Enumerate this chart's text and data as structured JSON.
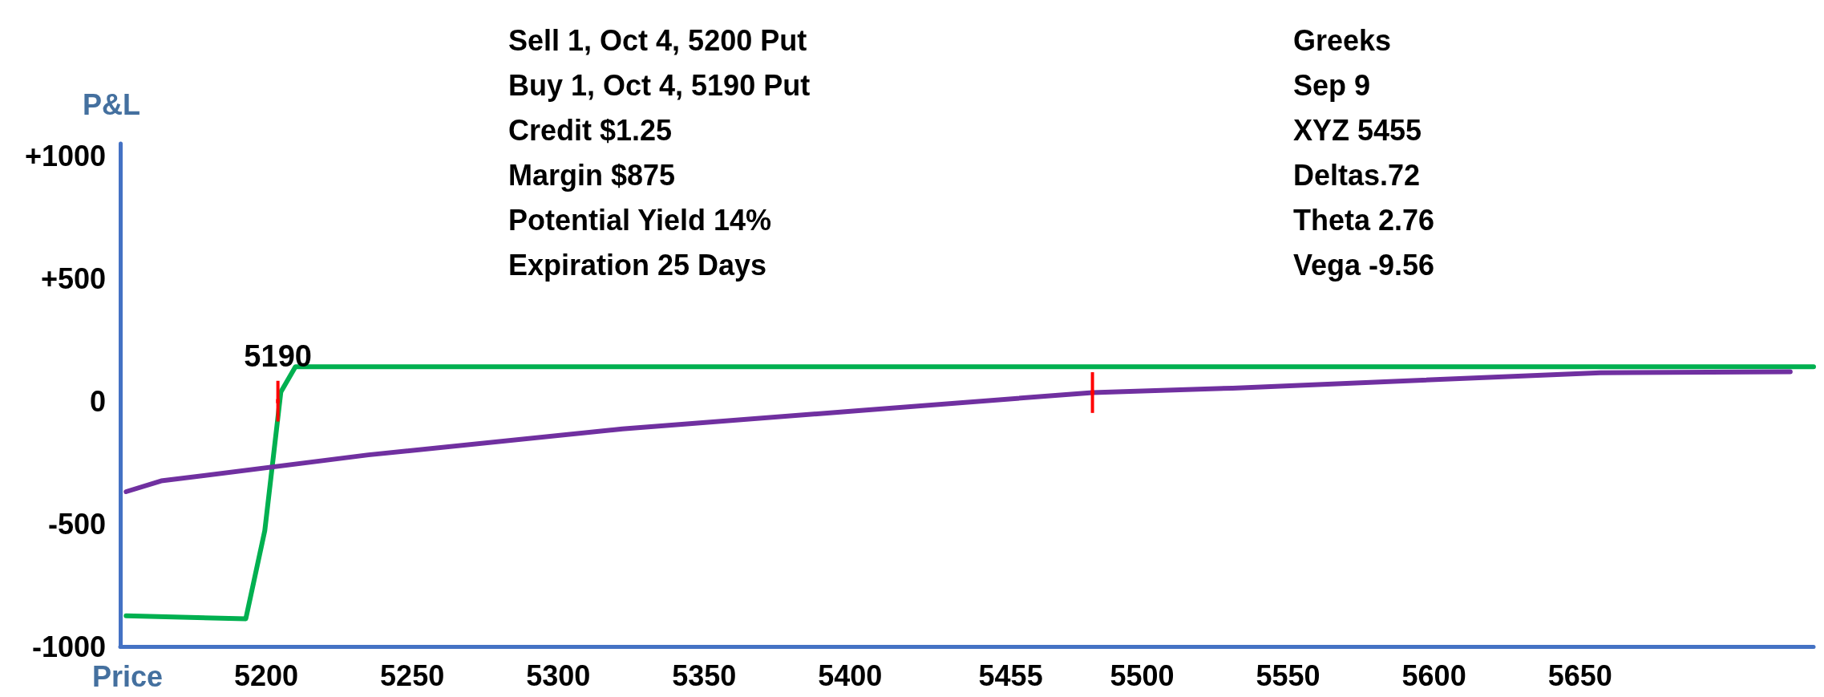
{
  "chart_data": {
    "type": "line",
    "xlabel": "Price",
    "ylabel": "P&L",
    "xlim": [
      5150,
      5730
    ],
    "xticks": [
      5200,
      5250,
      5300,
      5350,
      5400,
      5455,
      5500,
      5550,
      5600,
      5650
    ],
    "ylim": [
      -1000,
      1050
    ],
    "yticks": [
      {
        "value": 1000,
        "label": "+1000"
      },
      {
        "value": 500,
        "label": "+500"
      },
      0,
      -500,
      -1000
    ],
    "grid": false,
    "marker": "none",
    "line_style": "solid",
    "series": [
      {
        "color": "#00b050",
        "x": [
          5152,
          5193,
          5199.5,
          5205,
          5210,
          5730
        ],
        "values": [
          -875,
          -887,
          -528,
          37,
          140,
          140
        ]
      },
      {
        "color": "#7030a0",
        "x": [
          5152,
          5164,
          5235,
          5322,
          5483,
          5531,
          5657,
          5722
        ],
        "values": [
          -369,
          -325,
          -219,
          -113,
          35,
          53,
          116,
          120
        ]
      },
      {
        "type": "scatter",
        "color": "#ff0000",
        "x": [
          5204,
          5483
        ],
        "values": [
          0,
          35
        ],
        "marker": "square",
        "errors": [
          [
            -83,
            83
          ],
          [
            -48,
            118
          ]
        ]
      }
    ],
    "annotations": [
      "Sell 1, Oct 4, 5200 Put\nBuy 1, Oct 4, 5190 Put\nCredit $1.25\nMargin $875\nPotential Yield 14%\nExpiration 25 Days",
      "Greeks\nSep 9\nXYZ 5455\nDeltas.72\nTheta 2.76\nVega -9.56",
      {
        "text": "5190",
        "x": 5204,
        "y": 0
      }
    ]
  }
}
